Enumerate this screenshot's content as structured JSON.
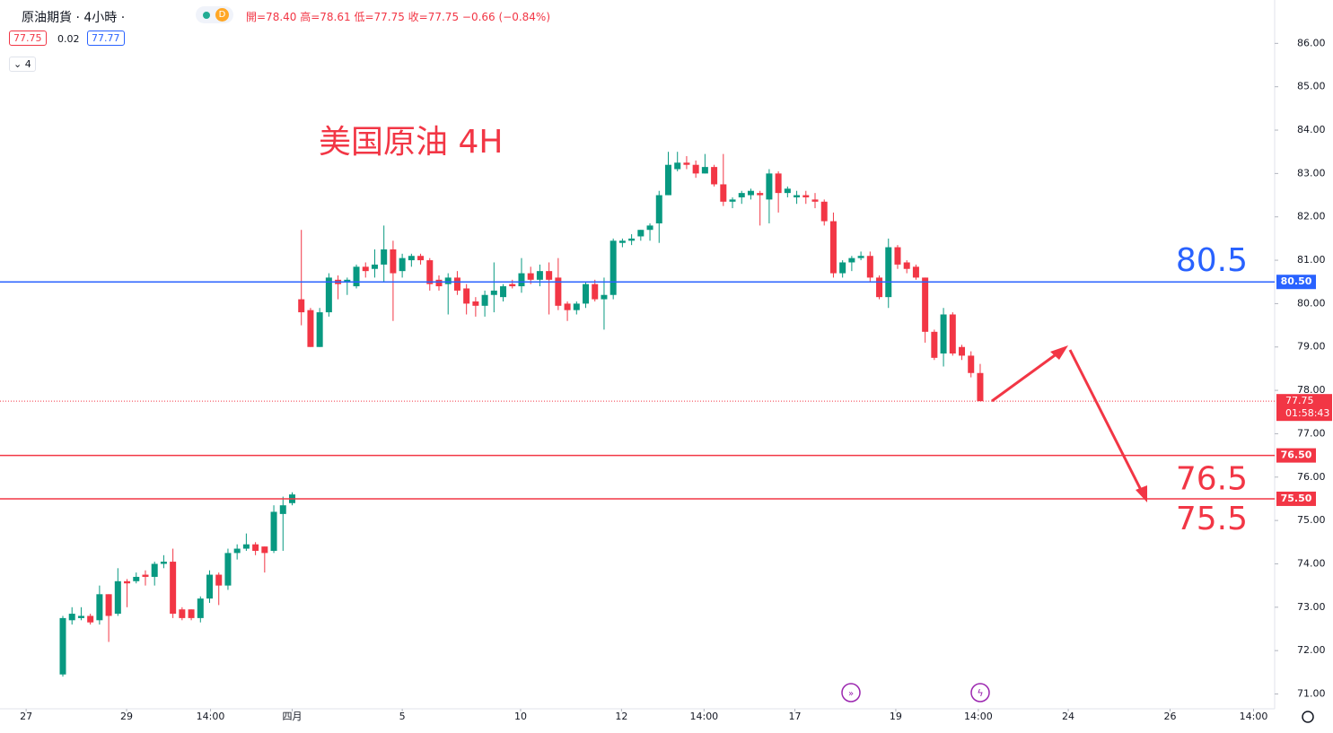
{
  "header": {
    "title": "原油期貨 · 4小時 ·",
    "badge": "D",
    "ohlc": "開=78.40 高=78.61 低=77.75 收=77.75 −0.66 (−0.84%)",
    "bid": "77.75",
    "spread": "0.02",
    "ask": "77.77",
    "indicators": "4"
  },
  "chart_data": {
    "type": "candlestick",
    "title": "美国原油 4H",
    "up_color": "#089981",
    "down_color": "#f23645",
    "ylim": [
      70.7,
      87.0
    ],
    "yticks": [
      {
        "value": 71,
        "label": "71.00"
      },
      {
        "value": 72,
        "label": "72.00"
      },
      {
        "value": 73,
        "label": "73.00"
      },
      {
        "value": 74,
        "label": "74.00"
      },
      {
        "value": 75,
        "label": "75.00"
      },
      {
        "value": 76,
        "label": "76.00"
      },
      {
        "value": 77,
        "label": "77.00"
      },
      {
        "value": 78,
        "label": "78.00"
      },
      {
        "value": 79,
        "label": "79.00"
      },
      {
        "value": 80,
        "label": "80.00"
      },
      {
        "value": 81,
        "label": "81.00"
      },
      {
        "value": 82,
        "label": "82.00"
      },
      {
        "value": 83,
        "label": "83.00"
      },
      {
        "value": 84,
        "label": "84.00"
      },
      {
        "value": 85,
        "label": "85.00"
      },
      {
        "value": 86,
        "label": "86.00"
      }
    ],
    "xlim": [
      -6.85,
      132.1
    ],
    "xticks": [
      {
        "value": -4.0,
        "label": "27"
      },
      {
        "value": 6.95,
        "label": "29"
      },
      {
        "value": 16.1,
        "label": "14:00"
      },
      {
        "value": 25.0,
        "label": "四月"
      },
      {
        "value": 37.0,
        "label": "5"
      },
      {
        "value": 49.9,
        "label": "10"
      },
      {
        "value": 60.9,
        "label": "12"
      },
      {
        "value": 69.9,
        "label": "14:00"
      },
      {
        "value": 79.8,
        "label": "17"
      },
      {
        "value": 90.8,
        "label": "19"
      },
      {
        "value": 99.8,
        "label": "14:00"
      },
      {
        "value": 109.6,
        "label": "24"
      },
      {
        "value": 120.7,
        "label": "26"
      },
      {
        "value": 129.8,
        "label": "14:00"
      }
    ],
    "open": [
      71.45,
      72.7,
      72.75,
      72.8,
      72.7,
      73.3,
      72.85,
      73.6,
      73.6,
      73.75,
      73.7,
      74.0,
      74.05,
      72.95,
      72.95,
      72.75,
      73.2,
      73.75,
      73.5,
      74.25,
      74.35,
      74.45,
      74.4,
      74.3,
      75.15,
      75.4,
      80.1,
      79.85,
      79.0,
      79.8,
      80.55,
      80.5,
      80.4,
      80.85,
      80.8,
      80.9,
      81.25,
      80.75,
      81.0,
      81.1,
      81.0,
      80.55,
      80.45,
      80.6,
      80.35,
      80.05,
      79.95,
      80.2,
      80.15,
      80.45,
      80.4,
      80.7,
      80.55,
      80.75,
      80.6,
      80.0,
      79.85,
      80.0,
      80.45,
      80.1,
      80.2,
      81.4,
      81.45,
      81.55,
      81.7,
      81.85,
      82.5,
      83.1,
      83.25,
      83.2,
      83.0,
      83.15,
      82.75,
      82.35,
      82.45,
      82.5,
      82.55,
      82.4,
      83.0,
      82.55,
      82.45,
      82.5,
      82.4,
      82.35,
      81.9,
      80.7,
      80.95,
      81.05,
      81.1,
      80.6,
      80.15,
      81.3,
      80.95,
      80.85,
      80.6,
      79.35,
      78.85,
      79.75,
      79.0,
      78.8,
      78.4
    ],
    "high": [
      72.8,
      73.0,
      73.0,
      72.85,
      73.5,
      73.3,
      73.9,
      73.65,
      73.8,
      73.85,
      74.05,
      74.2,
      74.35,
      73.0,
      72.95,
      73.25,
      73.85,
      73.8,
      74.35,
      74.45,
      74.7,
      74.5,
      74.4,
      75.35,
      75.55,
      75.65,
      81.7,
      79.9,
      79.9,
      80.7,
      80.65,
      80.6,
      80.9,
      80.95,
      81.25,
      81.8,
      81.45,
      81.15,
      81.15,
      81.15,
      81.05,
      80.65,
      80.7,
      80.75,
      80.45,
      80.15,
      80.3,
      80.95,
      80.45,
      80.55,
      81.05,
      80.85,
      80.9,
      80.95,
      81.05,
      80.05,
      80.05,
      80.5,
      80.55,
      80.6,
      81.5,
      81.5,
      81.6,
      81.7,
      81.85,
      82.6,
      83.5,
      83.5,
      83.4,
      83.3,
      83.45,
      83.2,
      83.45,
      82.45,
      82.6,
      82.65,
      82.6,
      83.1,
      83.05,
      82.7,
      82.6,
      82.6,
      82.55,
      82.4,
      82.1,
      81.0,
      81.1,
      81.2,
      81.2,
      80.65,
      81.5,
      81.35,
      81.0,
      80.9,
      80.6,
      79.4,
      79.9,
      79.8,
      79.05,
      78.9,
      78.61
    ],
    "low": [
      71.4,
      72.6,
      72.7,
      72.6,
      72.6,
      72.2,
      72.8,
      73.0,
      73.55,
      73.5,
      73.5,
      73.9,
      72.75,
      72.7,
      72.7,
      72.65,
      73.1,
      73.05,
      73.4,
      74.1,
      74.3,
      74.2,
      73.8,
      74.25,
      74.3,
      75.35,
      79.5,
      79.0,
      79.0,
      79.7,
      80.1,
      80.2,
      80.35,
      80.6,
      80.6,
      80.5,
      79.6,
      80.6,
      80.85,
      80.9,
      80.3,
      80.3,
      79.75,
      80.2,
      79.75,
      79.7,
      79.7,
      79.8,
      80.05,
      80.35,
      80.25,
      80.45,
      80.4,
      79.75,
      79.85,
      79.6,
      79.75,
      79.9,
      80.05,
      79.4,
      80.1,
      81.3,
      81.35,
      81.45,
      81.45,
      81.4,
      82.5,
      83.05,
      83.1,
      82.9,
      83.0,
      82.7,
      82.25,
      82.2,
      82.3,
      82.4,
      81.8,
      81.85,
      82.1,
      82.45,
      82.3,
      82.3,
      82.2,
      81.8,
      80.6,
      80.6,
      80.75,
      81.0,
      80.5,
      80.1,
      79.9,
      80.8,
      80.7,
      80.55,
      79.1,
      78.7,
      78.55,
      78.8,
      78.7,
      78.3,
      77.75
    ],
    "close": [
      72.75,
      72.85,
      72.8,
      72.65,
      73.3,
      72.8,
      73.6,
      73.55,
      73.7,
      73.7,
      74.0,
      74.05,
      72.85,
      72.75,
      72.75,
      73.2,
      73.75,
      73.5,
      74.25,
      74.35,
      74.45,
      74.3,
      74.25,
      75.2,
      75.35,
      75.6,
      79.8,
      79.0,
      79.8,
      80.6,
      80.45,
      80.55,
      80.85,
      80.75,
      80.9,
      81.25,
      80.7,
      81.05,
      81.1,
      81.0,
      80.45,
      80.4,
      80.6,
      80.3,
      80.0,
      79.95,
      80.2,
      80.3,
      80.4,
      80.4,
      80.7,
      80.55,
      80.75,
      80.55,
      79.95,
      79.85,
      80.0,
      80.45,
      80.1,
      80.2,
      81.45,
      81.45,
      81.5,
      81.7,
      81.8,
      82.5,
      83.2,
      83.25,
      83.2,
      83.0,
      83.15,
      82.75,
      82.35,
      82.4,
      82.55,
      82.6,
      82.5,
      83.0,
      82.55,
      82.65,
      82.5,
      82.45,
      82.35,
      81.9,
      80.7,
      80.95,
      81.05,
      81.1,
      80.6,
      80.15,
      81.3,
      80.9,
      80.8,
      80.6,
      79.35,
      78.75,
      79.75,
      78.85,
      78.8,
      78.4,
      77.75
    ],
    "hlines": [
      {
        "value": 80.5,
        "label": "80.50",
        "color": "#2962ff",
        "annotation": "80.5"
      },
      {
        "value": 76.5,
        "label": "76.50",
        "color": "#f23645",
        "annotation": "76.5"
      },
      {
        "value": 75.5,
        "label": "75.50",
        "color": "#f23645",
        "annotation": "75.5"
      }
    ],
    "price_line": {
      "value": 77.75,
      "label": "77.75",
      "countdown": "01:58:43",
      "color": "#f23645"
    }
  }
}
